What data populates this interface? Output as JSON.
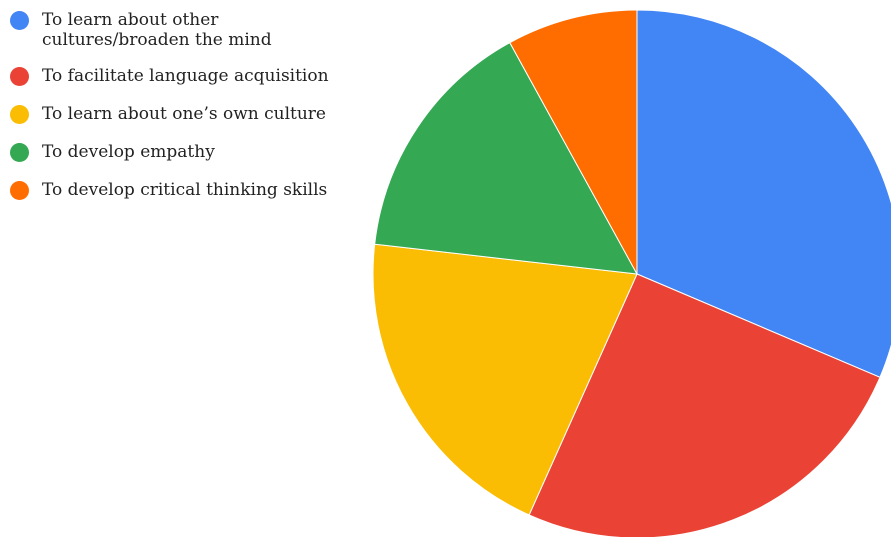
{
  "chart_data": {
    "type": "pie",
    "title": "",
    "categories": [
      "To learn about other cultures/broaden the mind",
      "To facilitate language acquisition",
      "To learn about one’s own culture",
      "To develop empathy",
      "To develop critical thinking skills"
    ],
    "values": [
      31.4,
      25.3,
      20.1,
      15.2,
      8.0
    ],
    "colors": [
      "#4285f4",
      "#ea4335",
      "#fbbc04",
      "#34a853",
      "#ff6d01"
    ],
    "start_angle_deg": 0,
    "direction": "clockwise",
    "legend_position": "top-left",
    "data_labels": false
  },
  "legend": {
    "items": [
      {
        "label": "To learn about other cultures/broaden the mind",
        "color": "#4285f4"
      },
      {
        "label": "To facilitate language acquisition",
        "color": "#ea4335"
      },
      {
        "label": "To learn about one’s own culture",
        "color": "#fbbc04"
      },
      {
        "label": "To develop empathy",
        "color": "#34a853"
      },
      {
        "label": "To develop critical thinking skills",
        "color": "#ff6d01"
      }
    ]
  }
}
